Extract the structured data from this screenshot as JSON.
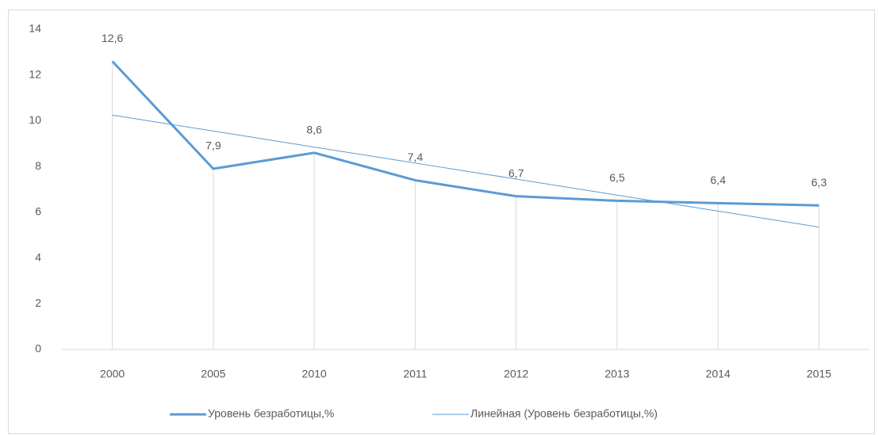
{
  "chart_data": {
    "type": "line",
    "categories": [
      "2000",
      "2005",
      "2010",
      "2011",
      "2012",
      "2013",
      "2014",
      "2015"
    ],
    "series": [
      {
        "name": "Уровень безработицы,%",
        "color": "#5b9bd5",
        "values": [
          12.6,
          7.9,
          8.6,
          7.4,
          6.7,
          6.5,
          6.4,
          6.3
        ],
        "value_labels": [
          "12,6",
          "7,9",
          "8,6",
          "7,4",
          "6,7",
          "6,5",
          "6,4",
          "6,3"
        ]
      },
      {
        "name": "Линейная (Уровень безработицы,%)",
        "color": "#5b9bd5",
        "values": [
          10.25,
          9.55,
          8.85,
          8.15,
          7.45,
          6.75,
          6.05,
          5.35
        ]
      }
    ],
    "ylim": [
      0,
      14
    ],
    "yticks": [
      0,
      2,
      4,
      6,
      8,
      10,
      12,
      14
    ],
    "grid": false,
    "legend": "bottom"
  }
}
